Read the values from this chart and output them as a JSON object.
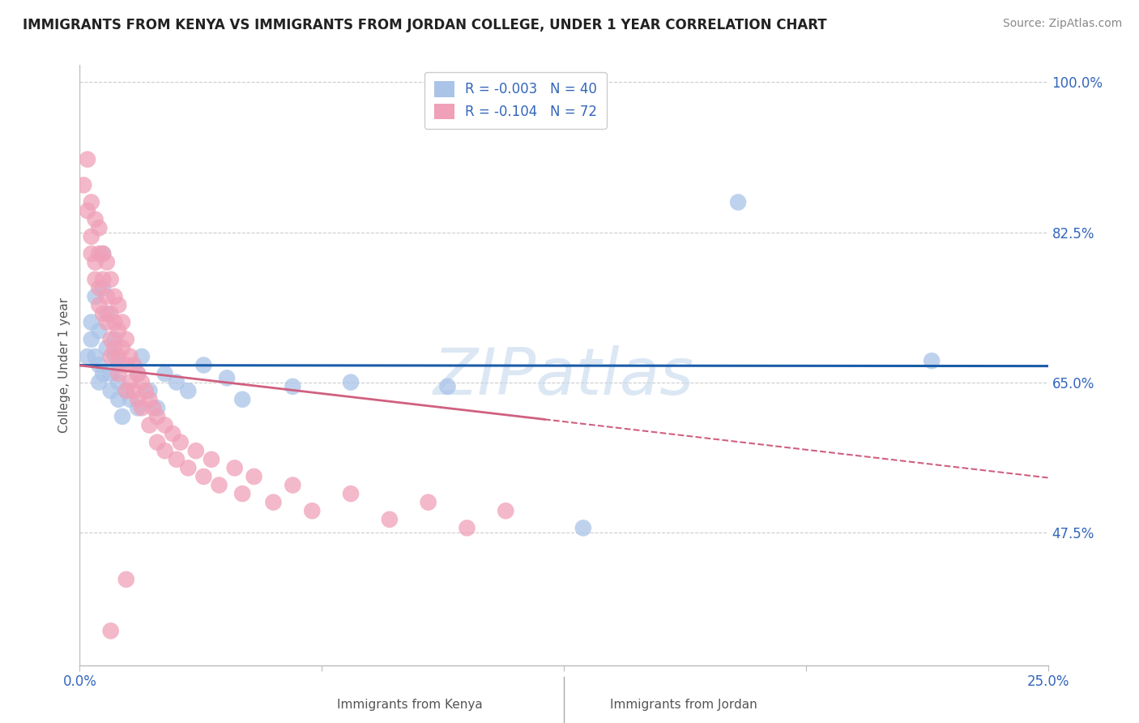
{
  "title": "IMMIGRANTS FROM KENYA VS IMMIGRANTS FROM JORDAN COLLEGE, UNDER 1 YEAR CORRELATION CHART",
  "source": "Source: ZipAtlas.com",
  "xlabel_kenya": "Immigrants from Kenya",
  "xlabel_jordan": "Immigrants from Jordan",
  "ylabel": "College, Under 1 year",
  "watermark": "ZIPatlas",
  "xmin": 0.0,
  "xmax": 0.25,
  "ymin": 0.32,
  "ymax": 1.02,
  "yticks": [
    0.475,
    0.65,
    0.825,
    1.0
  ],
  "ytick_labels": [
    "47.5%",
    "65.0%",
    "82.5%",
    "100.0%"
  ],
  "xticks": [
    0.0,
    0.0625,
    0.125,
    0.1875,
    0.25
  ],
  "xtick_labels": [
    "0.0%",
    "",
    "",
    "",
    "25.0%"
  ],
  "legend_kenya_R": "-0.003",
  "legend_kenya_N": "40",
  "legend_jordan_R": "-0.104",
  "legend_jordan_N": "72",
  "kenya_color": "#aac4e8",
  "jordan_color": "#f0a0b8",
  "kenya_line_color": "#1a5ca8",
  "jordan_line_color": "#d06080",
  "background_color": "#ffffff",
  "grid_color": "#cccccc",
  "title_color": "#222222",
  "axis_label_color": "#3366bb",
  "kenya_scatter_x": [
    0.002,
    0.003,
    0.003,
    0.004,
    0.004,
    0.005,
    0.005,
    0.005,
    0.006,
    0.006,
    0.006,
    0.007,
    0.007,
    0.008,
    0.008,
    0.009,
    0.009,
    0.01,
    0.01,
    0.01,
    0.011,
    0.012,
    0.013,
    0.015,
    0.015,
    0.016,
    0.018,
    0.02,
    0.022,
    0.025,
    0.028,
    0.032,
    0.038,
    0.042,
    0.055,
    0.07,
    0.095,
    0.13,
    0.17,
    0.22
  ],
  "kenya_scatter_y": [
    0.68,
    0.72,
    0.7,
    0.75,
    0.68,
    0.67,
    0.71,
    0.65,
    0.8,
    0.76,
    0.66,
    0.69,
    0.73,
    0.64,
    0.66,
    0.68,
    0.7,
    0.63,
    0.65,
    0.67,
    0.61,
    0.64,
    0.63,
    0.62,
    0.66,
    0.68,
    0.64,
    0.62,
    0.66,
    0.65,
    0.64,
    0.67,
    0.655,
    0.63,
    0.645,
    0.65,
    0.645,
    0.48,
    0.86,
    0.675
  ],
  "jordan_scatter_x": [
    0.001,
    0.002,
    0.002,
    0.003,
    0.003,
    0.003,
    0.004,
    0.004,
    0.004,
    0.005,
    0.005,
    0.005,
    0.005,
    0.006,
    0.006,
    0.006,
    0.007,
    0.007,
    0.007,
    0.008,
    0.008,
    0.008,
    0.008,
    0.009,
    0.009,
    0.009,
    0.01,
    0.01,
    0.01,
    0.01,
    0.011,
    0.011,
    0.012,
    0.012,
    0.012,
    0.013,
    0.013,
    0.014,
    0.014,
    0.015,
    0.015,
    0.016,
    0.016,
    0.017,
    0.018,
    0.018,
    0.019,
    0.02,
    0.02,
    0.022,
    0.022,
    0.024,
    0.025,
    0.026,
    0.028,
    0.03,
    0.032,
    0.034,
    0.036,
    0.04,
    0.042,
    0.045,
    0.05,
    0.055,
    0.06,
    0.07,
    0.08,
    0.09,
    0.1,
    0.11,
    0.008,
    0.012
  ],
  "jordan_scatter_y": [
    0.88,
    0.91,
    0.85,
    0.86,
    0.82,
    0.8,
    0.84,
    0.79,
    0.77,
    0.83,
    0.8,
    0.76,
    0.74,
    0.8,
    0.77,
    0.73,
    0.79,
    0.75,
    0.72,
    0.77,
    0.73,
    0.7,
    0.68,
    0.75,
    0.72,
    0.69,
    0.74,
    0.71,
    0.68,
    0.66,
    0.72,
    0.69,
    0.7,
    0.67,
    0.64,
    0.68,
    0.65,
    0.67,
    0.64,
    0.66,
    0.63,
    0.65,
    0.62,
    0.64,
    0.63,
    0.6,
    0.62,
    0.61,
    0.58,
    0.6,
    0.57,
    0.59,
    0.56,
    0.58,
    0.55,
    0.57,
    0.54,
    0.56,
    0.53,
    0.55,
    0.52,
    0.54,
    0.51,
    0.53,
    0.5,
    0.52,
    0.49,
    0.51,
    0.48,
    0.5,
    0.36,
    0.42
  ],
  "jordan_line_x_solid_end": 0.12,
  "jordan_line_x_dash_start": 0.12
}
